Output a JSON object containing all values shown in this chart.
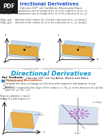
{
  "bg_color": "#ffffff",
  "top_pdf_box_color": "#1a1a1a",
  "top_pdf_text_color": "#ffffff",
  "top_title_color": "#2255cc",
  "top_subtitle_color": "#333333",
  "top_text_color": "#444444",
  "divider_color": "#aaaaaa",
  "bottom_bg_color": "#ffffff",
  "bottom_title_color": "#1199cc",
  "bottom_text_color": "#333333",
  "bottom_ref_color": "#000000",
  "bottom_section_box_color": "#4488cc",
  "bottom_section_title_color": "#cc4400",
  "diagram_orange": "#e8a020",
  "diagram_blue": "#88aace",
  "diagram_arrow_color": "#aa44aa"
}
